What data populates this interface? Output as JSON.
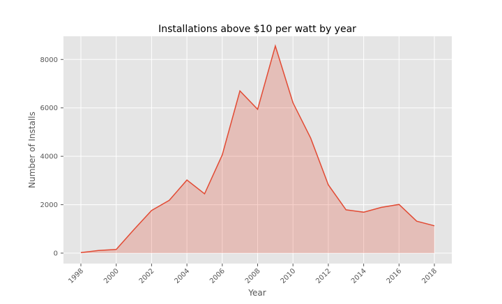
{
  "chart_data": {
    "type": "area",
    "title": "Installations above $10 per watt by year",
    "xlabel": "Year",
    "ylabel": "Number of Installs",
    "x": [
      1998,
      1999,
      2000,
      2001,
      2002,
      2003,
      2004,
      2005,
      2006,
      2007,
      2008,
      2009,
      2010,
      2011,
      2012,
      2013,
      2014,
      2015,
      2016,
      2017,
      2018
    ],
    "series": [
      {
        "values": [
          20,
          110,
          150,
          970,
          1760,
          2180,
          3020,
          2450,
          4060,
          6700,
          5940,
          8560,
          6210,
          4750,
          2820,
          1790,
          1690,
          1890,
          2010,
          1320,
          1130
        ]
      }
    ],
    "xlim": [
      1998,
      2018
    ],
    "ylim": [
      0,
      8600
    ],
    "xticks": [
      "1998",
      "2000",
      "2002",
      "2004",
      "2006",
      "2008",
      "2010",
      "2012",
      "2014",
      "2016",
      "2018"
    ],
    "yticks": [
      "0",
      "2000",
      "4000",
      "6000",
      "8000"
    ],
    "grid": true,
    "colors": {
      "line": "#E24A33",
      "fill": "#E24A33",
      "background": "#E5E5E5",
      "grid": "#FFFFFF",
      "text": "#555555",
      "title": "#000000"
    }
  }
}
